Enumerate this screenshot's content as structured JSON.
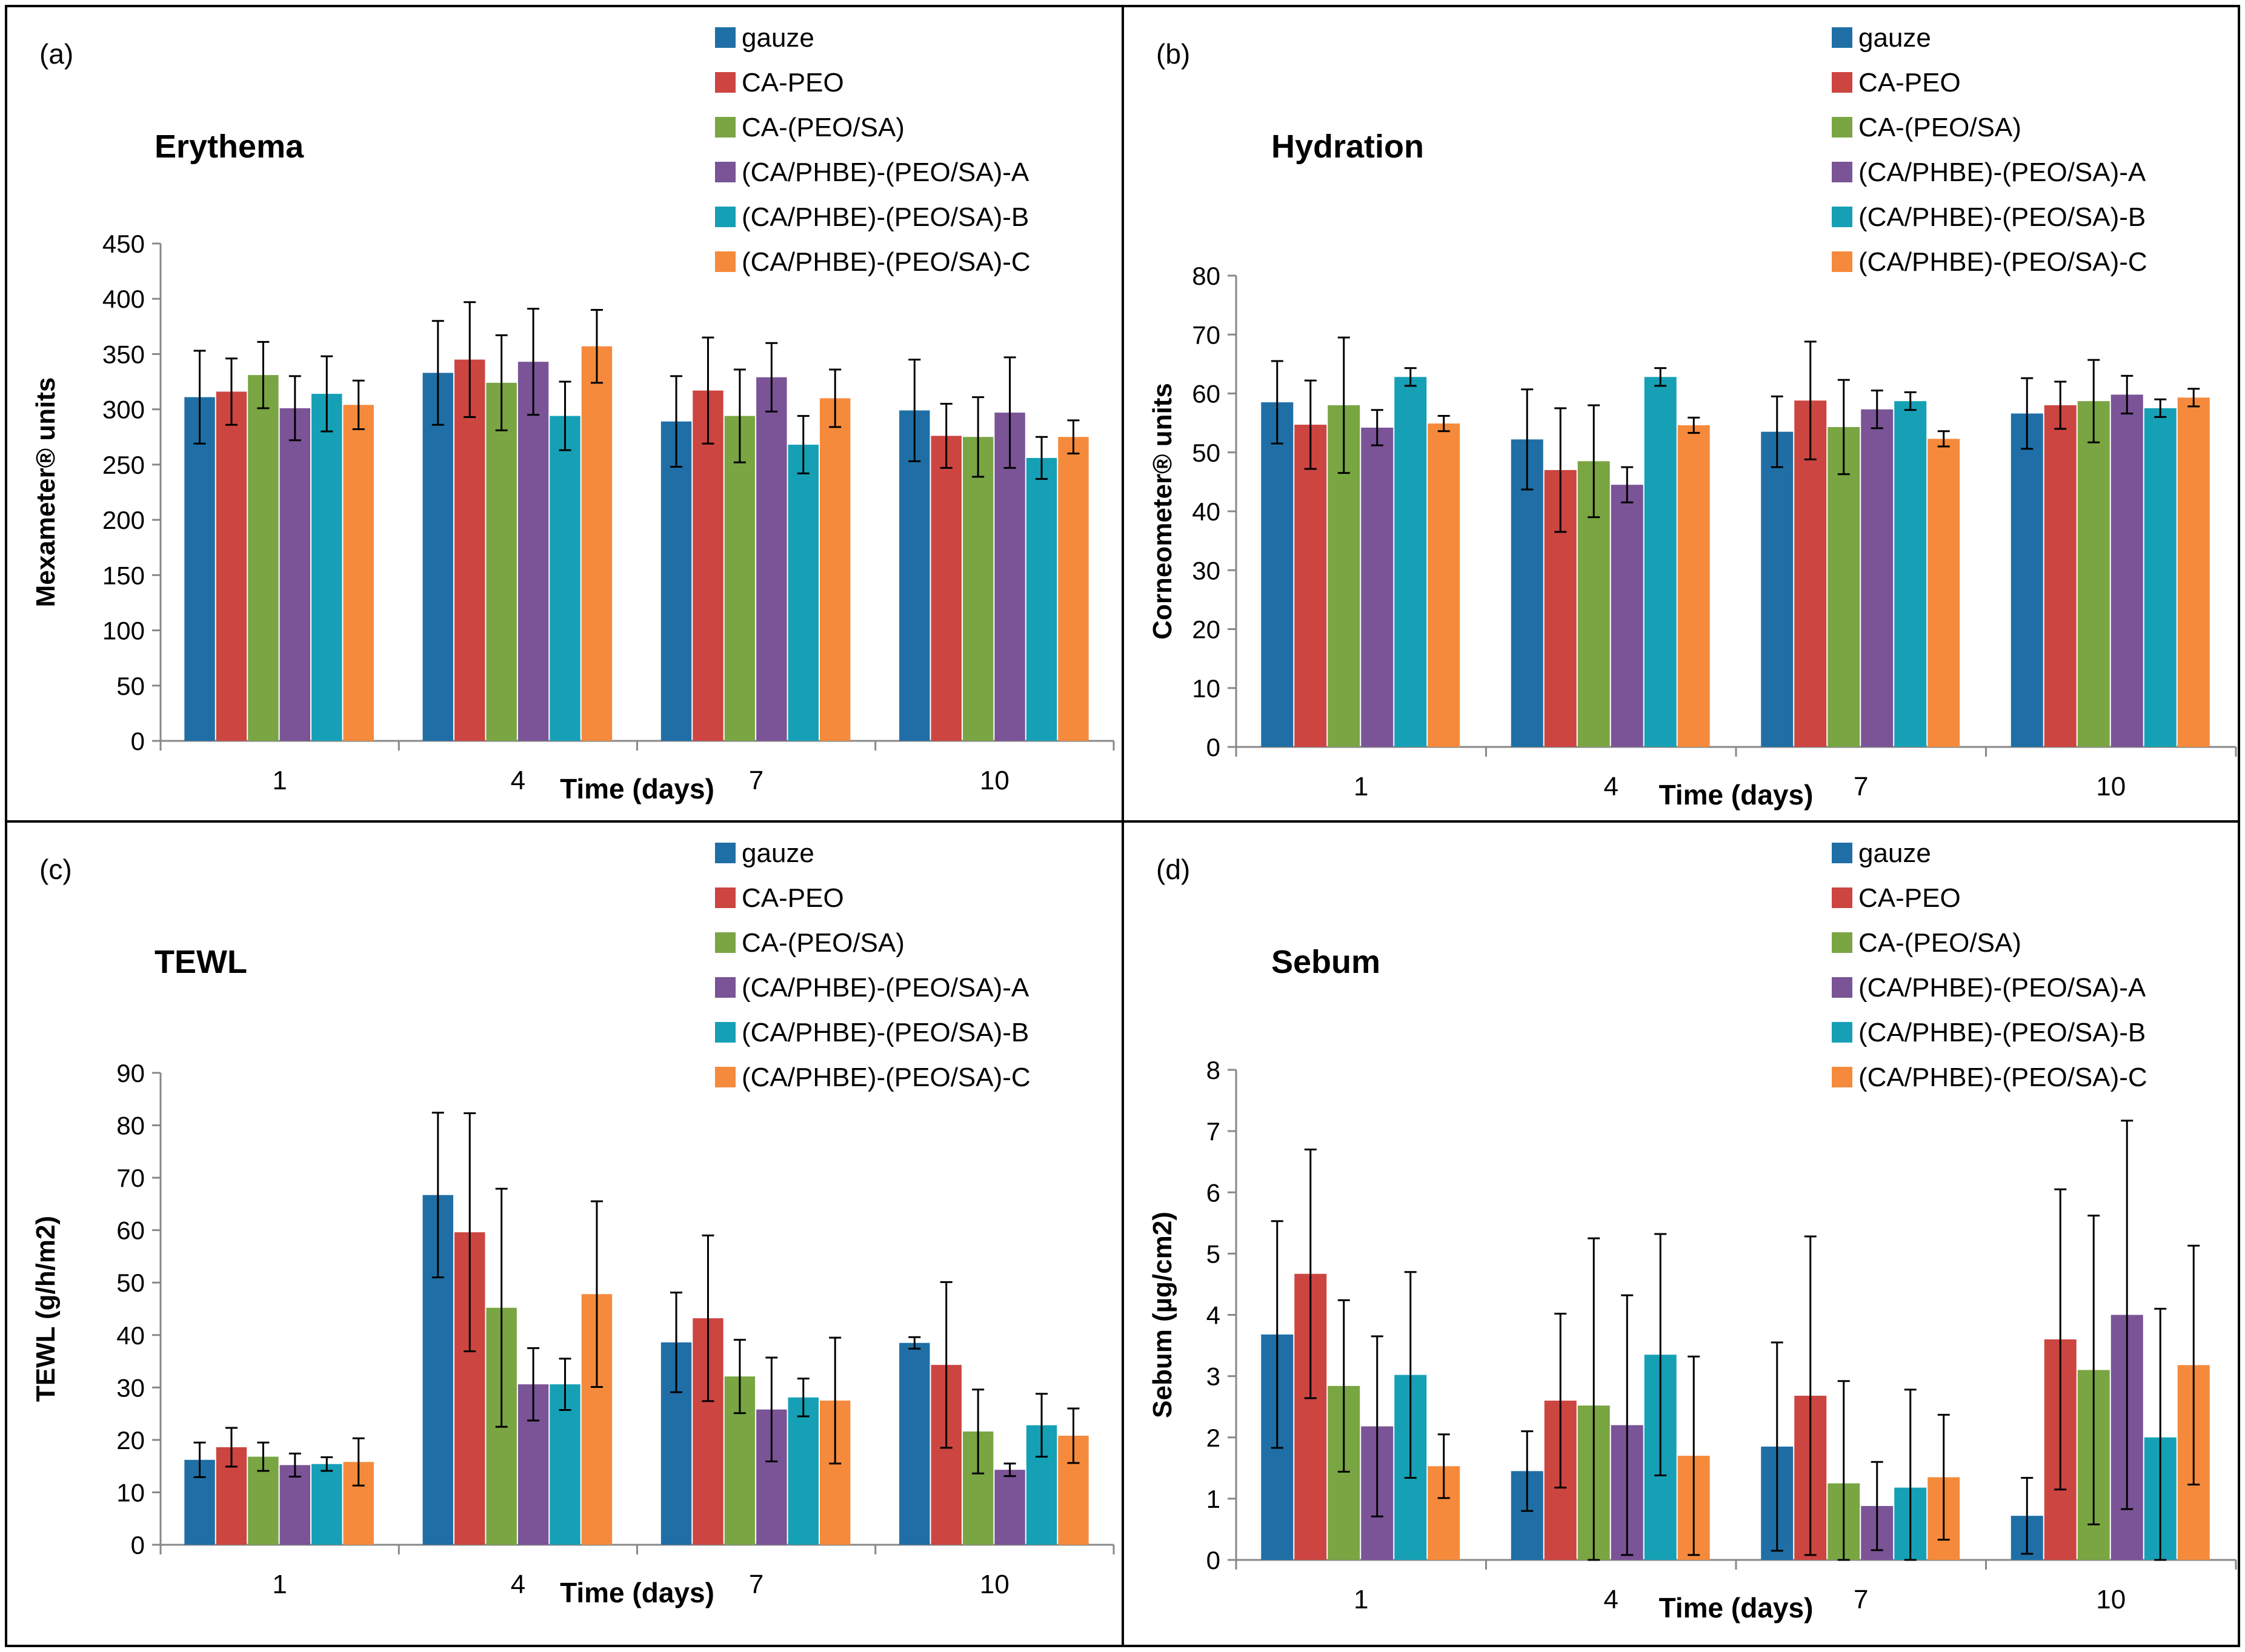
{
  "colors": {
    "gauze": "#1f6fa6",
    "CA-PEO": "#cc4541",
    "CA-(PEO/SA)": "#79a543",
    "(CA/PHBE)-(PEO/SA)-A": "#7a5496",
    "(CA/PHBE)-(PEO/SA)-B": "#16a0b6",
    "(CA/PHBE)-(PEO/SA)-C": "#f58a3c"
  },
  "chart_data": [
    {
      "type": "bar",
      "panel_label": "(a)",
      "title": "Erythema",
      "xlabel": "Time (days)",
      "ylabel": "Mexameter® units",
      "categories": [
        "1",
        "4",
        "7",
        "10"
      ],
      "ylim": [
        0,
        450
      ],
      "yticks": [
        "0",
        "50",
        "100",
        "150",
        "200",
        "250",
        "300",
        "350",
        "400",
        "450"
      ],
      "legend_position": "top-right",
      "series": [
        {
          "name": "gauze",
          "values": [
            311,
            333,
            289,
            299
          ],
          "errors": [
            42,
            47,
            41,
            46
          ]
        },
        {
          "name": "CA-PEO",
          "values": [
            316,
            345,
            317,
            276
          ],
          "errors": [
            30,
            52,
            48,
            29
          ]
        },
        {
          "name": "CA-(PEO/SA)",
          "values": [
            331,
            324,
            294,
            275
          ],
          "errors": [
            30,
            43,
            42,
            36
          ]
        },
        {
          "name": "(CA/PHBE)-(PEO/SA)-A",
          "values": [
            301,
            343,
            329,
            297
          ],
          "errors": [
            29,
            48,
            31,
            50
          ]
        },
        {
          "name": "(CA/PHBE)-(PEO/SA)-B",
          "values": [
            314,
            294,
            268,
            256
          ],
          "errors": [
            34,
            31,
            26,
            19
          ]
        },
        {
          "name": "(CA/PHBE)-(PEO/SA)-C",
          "values": [
            304,
            357,
            310,
            275
          ],
          "errors": [
            22,
            33,
            26,
            15
          ]
        }
      ]
    },
    {
      "type": "bar",
      "panel_label": "(b)",
      "title": "Hydration",
      "xlabel": "Time (days)",
      "ylabel": "Corneometer® units",
      "categories": [
        "1",
        "4",
        "7",
        "10"
      ],
      "ylim": [
        0,
        80
      ],
      "yticks": [
        "0",
        "10",
        "20",
        "30",
        "40",
        "50",
        "60",
        "70",
        "80"
      ],
      "legend_position": "top-right",
      "series": [
        {
          "name": "gauze",
          "values": [
            58.5,
            52.2,
            53.5,
            56.6
          ],
          "errors": [
            7,
            8.5,
            6,
            6
          ]
        },
        {
          "name": "CA-PEO",
          "values": [
            54.7,
            47,
            58.8,
            58
          ],
          "errors": [
            7.5,
            10.5,
            10,
            4
          ]
        },
        {
          "name": "CA-(PEO/SA)",
          "values": [
            58,
            48.5,
            54.3,
            58.7
          ],
          "errors": [
            11.5,
            9.5,
            8,
            7
          ]
        },
        {
          "name": "(CA/PHBE)-(PEO/SA)-A",
          "values": [
            54.2,
            44.5,
            57.3,
            59.8
          ],
          "errors": [
            3,
            3,
            3.2,
            3.2
          ]
        },
        {
          "name": "(CA/PHBE)-(PEO/SA)-B",
          "values": [
            62.8,
            62.8,
            58.7,
            57.5
          ],
          "errors": [
            1.5,
            1.5,
            1.5,
            1.5
          ]
        },
        {
          "name": "(CA/PHBE)-(PEO/SA)-C",
          "values": [
            54.9,
            54.6,
            52.3,
            59.3
          ],
          "errors": [
            1.3,
            1.3,
            1.3,
            1.5
          ]
        }
      ]
    },
    {
      "type": "bar",
      "panel_label": "(c)",
      "title": "TEWL",
      "xlabel": "Time (days)",
      "ylabel": "TEWL (g/h/m2)",
      "categories": [
        "1",
        "4",
        "7",
        "10"
      ],
      "ylim": [
        0,
        90
      ],
      "yticks": [
        "0",
        "10",
        "20",
        "30",
        "40",
        "50",
        "60",
        "70",
        "80",
        "90"
      ],
      "legend_position": "top-right",
      "series": [
        {
          "name": "gauze",
          "values": [
            16.2,
            66.7,
            38.6,
            38.5
          ],
          "errors": [
            3.3,
            15.7,
            9.5,
            1.1
          ]
        },
        {
          "name": "CA-PEO",
          "values": [
            18.6,
            59.6,
            43.2,
            34.3
          ],
          "errors": [
            3.7,
            22.7,
            15.8,
            15.8
          ]
        },
        {
          "name": "CA-(PEO/SA)",
          "values": [
            16.8,
            45.2,
            32.1,
            21.6
          ],
          "errors": [
            2.7,
            22.7,
            7,
            8
          ]
        },
        {
          "name": "(CA/PHBE)-(PEO/SA)-A",
          "values": [
            15.2,
            30.6,
            25.8,
            14.3
          ],
          "errors": [
            2.2,
            6.9,
            9.9,
            1.2
          ]
        },
        {
          "name": "(CA/PHBE)-(PEO/SA)-B",
          "values": [
            15.4,
            30.6,
            28.1,
            22.8
          ],
          "errors": [
            1.3,
            4.9,
            3.6,
            6
          ]
        },
        {
          "name": "(CA/PHBE)-(PEO/SA)-C",
          "values": [
            15.8,
            47.8,
            27.5,
            20.8
          ],
          "errors": [
            4.5,
            17.7,
            12,
            5.2
          ]
        }
      ]
    },
    {
      "type": "bar",
      "panel_label": "(d)",
      "title": "Sebum",
      "xlabel": "Time (days)",
      "ylabel": "Sebum (µg/cm2)",
      "categories": [
        "1",
        "4",
        "7",
        "10"
      ],
      "ylim": [
        0,
        8
      ],
      "yticks": [
        "0",
        "1",
        "2",
        "3",
        "4",
        "5",
        "6",
        "7",
        "8"
      ],
      "legend_position": "top-right",
      "series": [
        {
          "name": "gauze",
          "values": [
            3.68,
            1.45,
            1.85,
            0.72
          ],
          "errors": [
            1.85,
            0.65,
            1.7,
            0.62
          ]
        },
        {
          "name": "CA-PEO",
          "values": [
            4.67,
            2.6,
            2.68,
            3.6
          ],
          "errors": [
            2.03,
            1.42,
            2.6,
            2.45
          ]
        },
        {
          "name": "CA-(PEO/SA)",
          "values": [
            2.84,
            2.52,
            1.25,
            3.1
          ],
          "errors": [
            1.4,
            2.73,
            1.67,
            2.52
          ]
        },
        {
          "name": "(CA/PHBE)-(PEO/SA)-A",
          "values": [
            2.18,
            2.2,
            0.88,
            4.0
          ],
          "errors": [
            1.47,
            2.12,
            0.72,
            3.17
          ]
        },
        {
          "name": "(CA/PHBE)-(PEO/SA)-B",
          "values": [
            3.02,
            3.35,
            1.18,
            2.0
          ],
          "errors": [
            1.68,
            1.97,
            1.6,
            2.1
          ]
        },
        {
          "name": "(CA/PHBE)-(PEO/SA)-C",
          "values": [
            1.53,
            1.7,
            1.35,
            3.18
          ],
          "errors": [
            0.52,
            1.62,
            1.02,
            1.95
          ]
        }
      ]
    }
  ]
}
